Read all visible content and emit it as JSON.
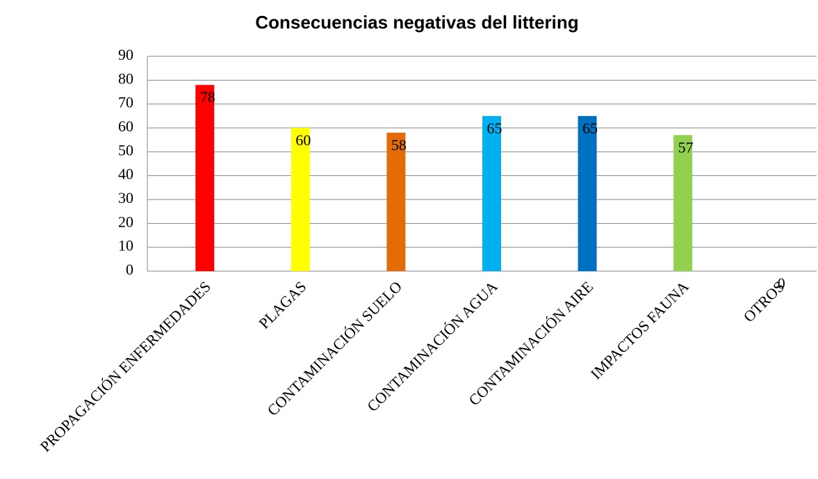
{
  "chart_data": {
    "type": "bar",
    "title": "Consecuencias negativas del littering",
    "categories": [
      "PROPAGACIÓN ENFERMEDADES",
      "PLAGAS",
      "CONTAMINACIÓN SUELO",
      "CONTAMINACIÓN AGUA",
      "CONTAMINACIÓN AIRE",
      "IMPACTOS FAUNA",
      "OTROS"
    ],
    "values": [
      78,
      60,
      58,
      65,
      65,
      57,
      0
    ],
    "colors": [
      "#ff0000",
      "#ffff00",
      "#e36c09",
      "#00b0f0",
      "#0070c0",
      "#92d050",
      "#7f7f7f"
    ],
    "ylim": [
      0,
      90
    ],
    "yticks": [
      0,
      10,
      20,
      30,
      40,
      50,
      60,
      70,
      80,
      90
    ],
    "grid": true
  }
}
